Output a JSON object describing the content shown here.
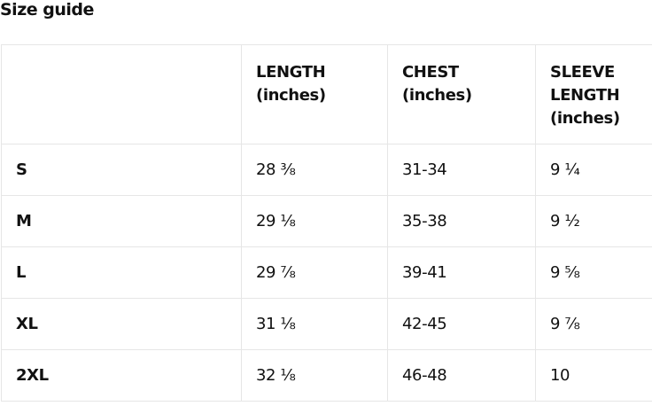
{
  "title": "Size guide",
  "table": {
    "headers": [
      "",
      "LENGTH (inches)",
      "CHEST (inches)",
      "SLEEVE LENGTH (inches)"
    ],
    "rows": [
      [
        "S",
        "28 ⅜",
        "31-34",
        "9 ¼"
      ],
      [
        "M",
        "29 ⅛",
        "35-38",
        "9 ½"
      ],
      [
        "L",
        "29 ⅞",
        "39-41",
        "9 ⅝"
      ],
      [
        "XL",
        "31 ⅛",
        "42-45",
        "9 ⅞"
      ],
      [
        "2XL",
        "32 ⅛",
        "46-48",
        "10"
      ]
    ]
  }
}
